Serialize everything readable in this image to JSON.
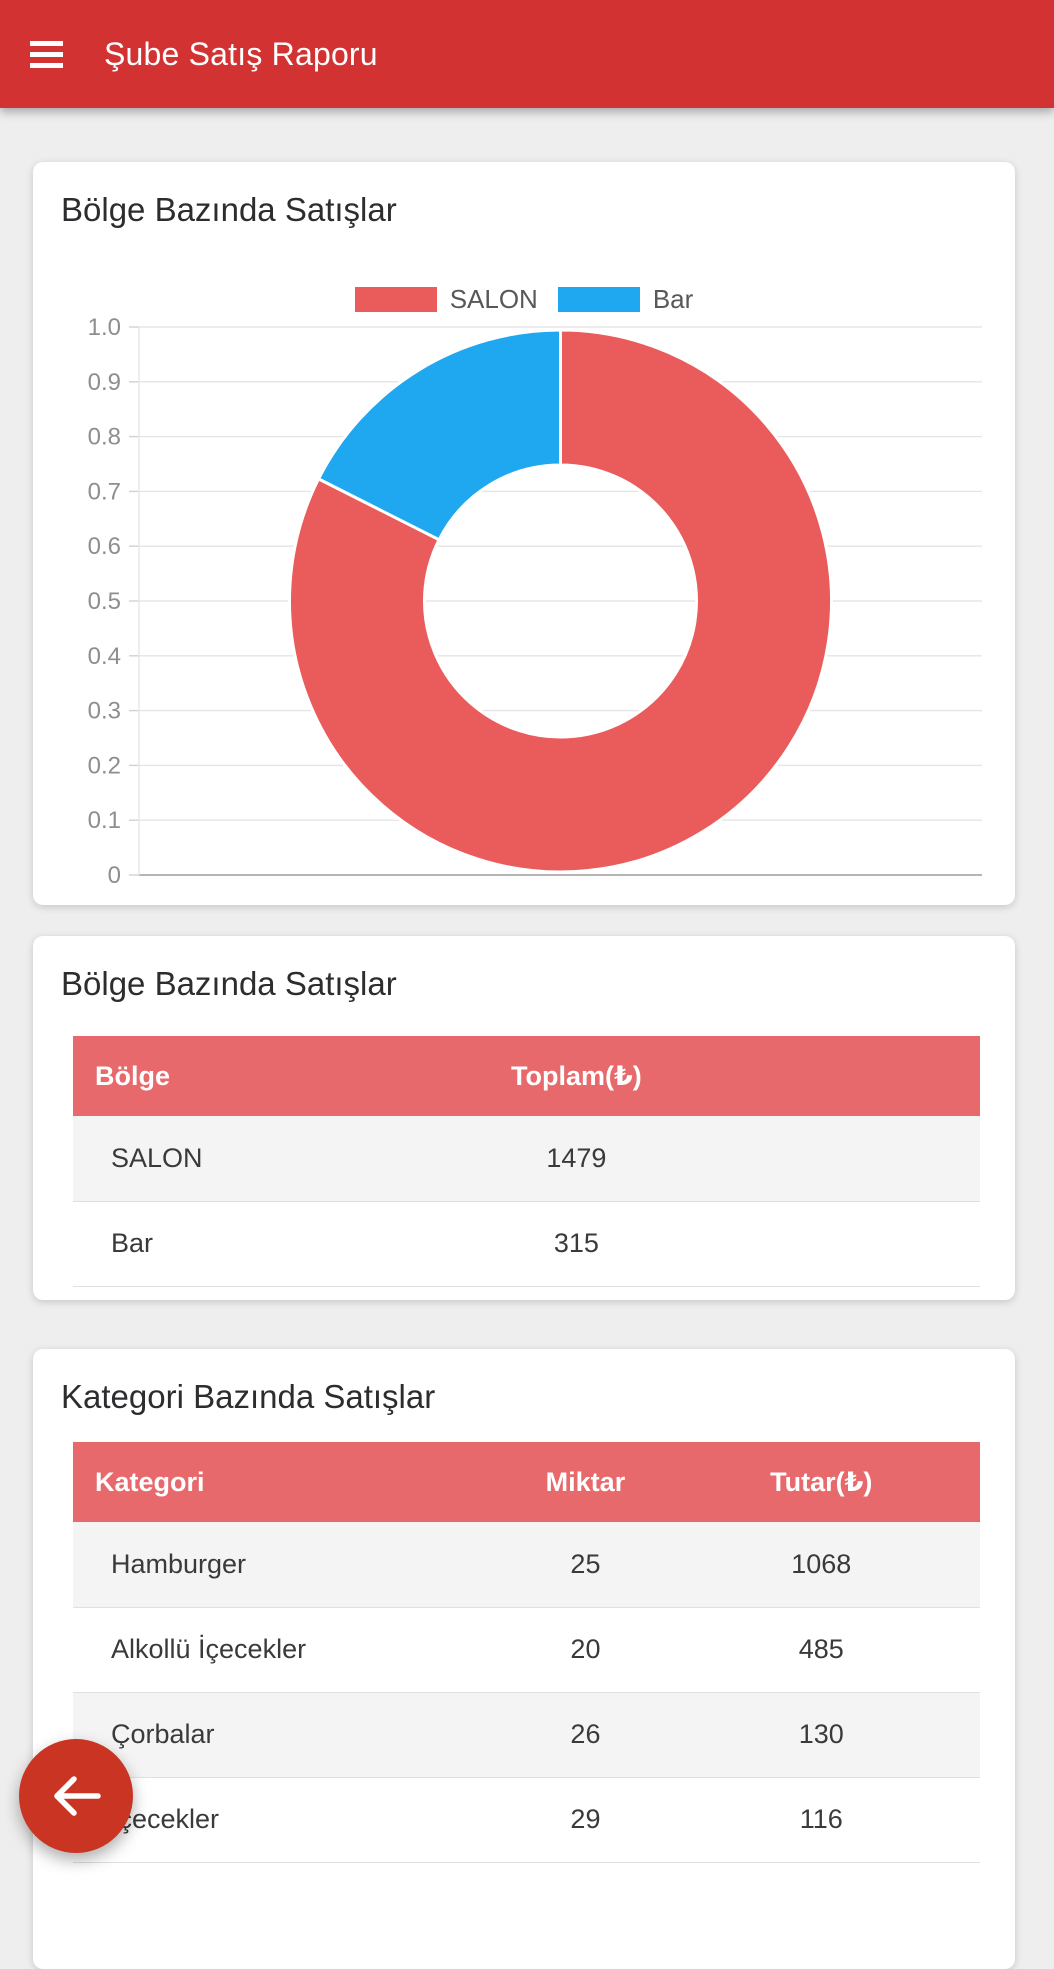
{
  "app_bar": {
    "title": "Şube Satış Raporu"
  },
  "cards": {
    "chart": {
      "title": "Bölge Bazında Satışlar"
    },
    "region": {
      "title": "Bölge Bazında Satışlar",
      "table": {
        "headers": [
          "Bölge",
          "Toplam(₺)"
        ],
        "rows": [
          [
            "SALON",
            "1479"
          ],
          [
            "Bar",
            "315"
          ]
        ]
      }
    },
    "category": {
      "title": "Kategori Bazında Satışlar",
      "table": {
        "headers": [
          "Kategori",
          "Miktar",
          "Tutar(₺)"
        ],
        "rows": [
          [
            "Hamburger",
            "25",
            "1068"
          ],
          [
            "Alkollü İçecekler",
            "20",
            "485"
          ],
          [
            "Çorbalar",
            "26",
            "130"
          ],
          [
            "İçecekler",
            "29",
            "116"
          ]
        ]
      }
    }
  },
  "chart_data": {
    "type": "pie",
    "style": "doughnut",
    "title": "Bölge Bazında Satışlar",
    "categories": [
      "SALON",
      "Bar"
    ],
    "values": [
      1479,
      315
    ],
    "colors": [
      "#ea5b5c",
      "#1fa8f0"
    ],
    "legend_position": "top",
    "grid": true,
    "y_axis": {
      "range": [
        0,
        1
      ],
      "ticks": [
        "1.0",
        "0.9",
        "0.8",
        "0.7",
        "0.6",
        "0.5",
        "0.4",
        "0.3",
        "0.2",
        "0.1",
        "0"
      ]
    }
  },
  "fab": {
    "icon": "arrow-left"
  },
  "colors": {
    "app_bar": "#d23231",
    "table_header": "#e8696b",
    "chart_red": "#ea5b5c",
    "chart_blue": "#1fa8f0",
    "fab": "#ca3523",
    "page_background": "#eeeeee"
  }
}
